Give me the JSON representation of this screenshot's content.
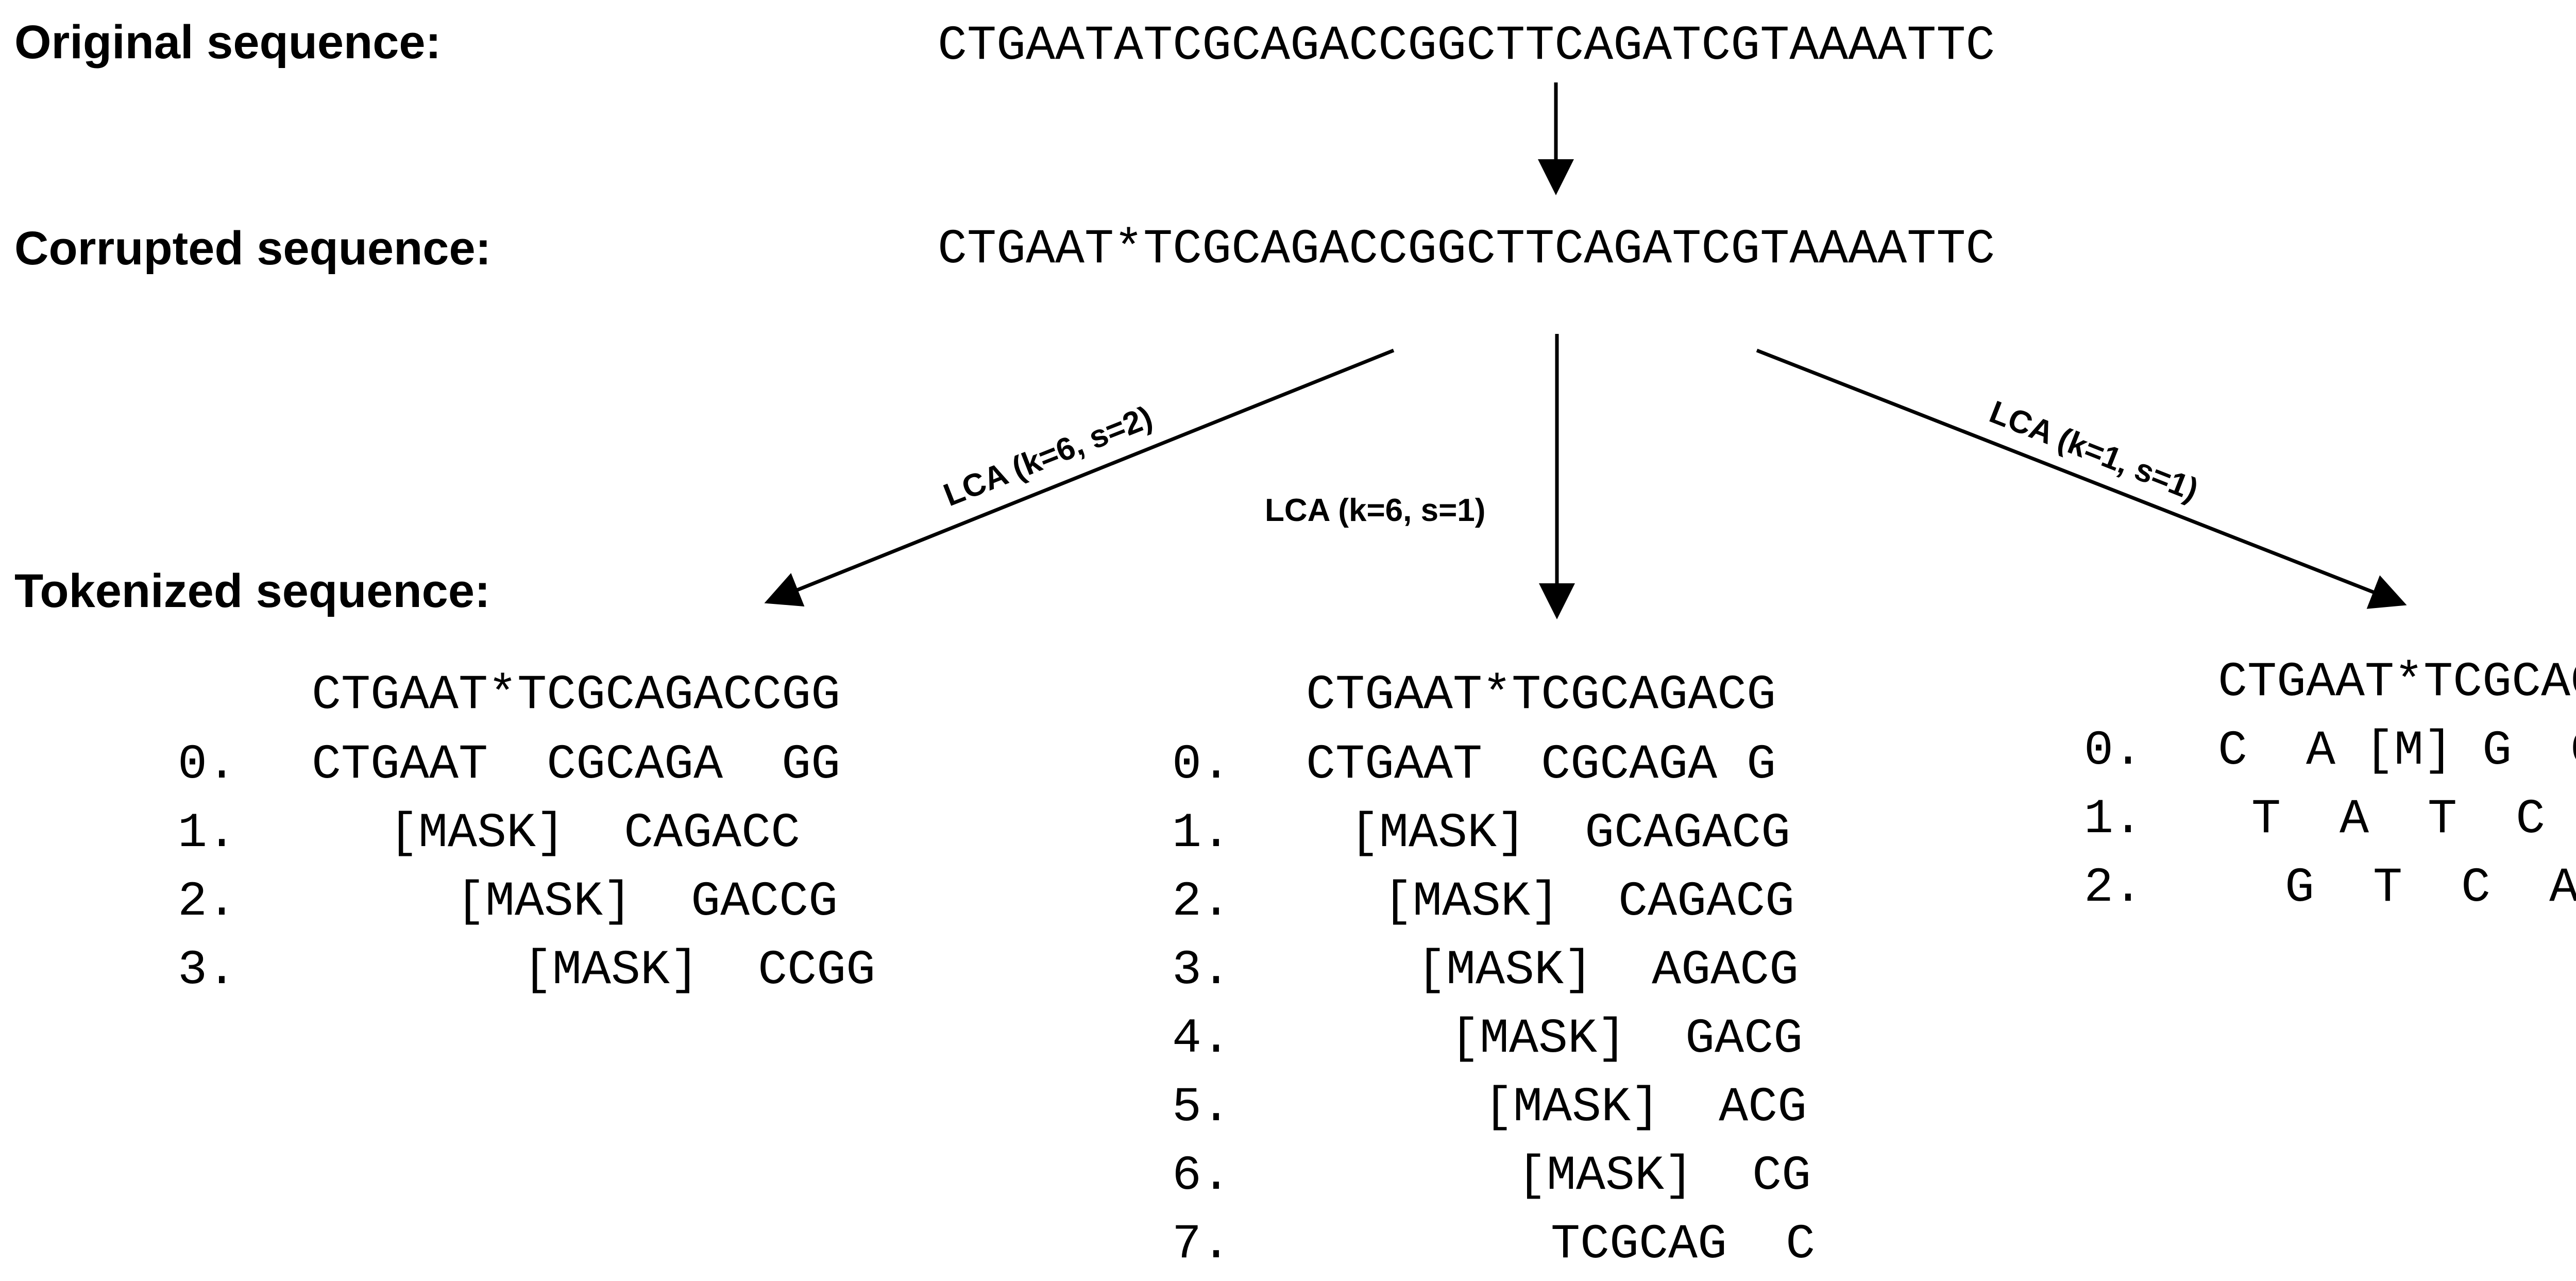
{
  "labels": {
    "original": "Original sequence:",
    "corrupted": "Corrupted sequence:",
    "tokenized": "Tokenized sequence:"
  },
  "sequences": {
    "original": "CTGAATATCGCAGACCGGCTTCAGATCGTAAAATTC",
    "corrupted": "CTGAAT*TCGCAGACCGGCTTCAGATCGTAAAATTC"
  },
  "branches": [
    {
      "label": "LCA (k=6, s=2)",
      "header": "CTGAAT*TCGCAGACCGG",
      "rows": [
        {
          "index": "0.",
          "text": "CTGAAT  CGCAGA  GG"
        },
        {
          "index": "1.",
          "text": "[MASK]  CAGACC  "
        },
        {
          "index": "2.",
          "text": "[MASK]  GACCG "
        },
        {
          "index": "3.",
          "text": "[MASK]  CCGG"
        }
      ]
    },
    {
      "label": "LCA (k=6, s=1)",
      "header": "CTGAAT*TCGCAGACG",
      "rows": [
        {
          "index": "0.",
          "text": "CTGAAT  CGCAGA G"
        },
        {
          "index": "1.",
          "text": "[MASK]  GCAGACG"
        },
        {
          "index": "2.",
          "text": "[MASK]  CAGACG"
        },
        {
          "index": "3.",
          "text": "[MASK]  AGACG"
        },
        {
          "index": "4.",
          "text": "[MASK]  GACG"
        },
        {
          "index": "5.",
          "text": "[MASK]  ACG"
        },
        {
          "index": "6.",
          "text": "[MASK]  CG"
        },
        {
          "index": "7.",
          "text": "TCGCAG  C"
        }
      ]
    },
    {
      "label": "LCA (k=1, s=1)",
      "header": "CTGAAT*TCGCAG",
      "rows": [
        {
          "index": "0.",
          "text": "C  A [M] G  G"
        },
        {
          "index": "1.",
          "text": "T  A  T  C  "
        },
        {
          "index": "2.",
          "text": "G  T  C  A"
        }
      ]
    }
  ]
}
